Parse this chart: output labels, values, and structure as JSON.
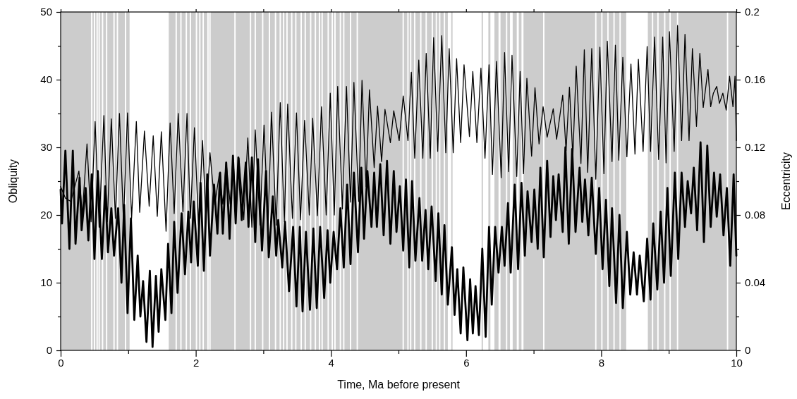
{
  "chart_data": {
    "type": "line",
    "xlabel": "Time, Ma before present",
    "ylabel": "Obliquity",
    "y2label": "Eccentricity",
    "xlim": [
      0,
      10
    ],
    "xticks": [
      0,
      {
        "value": 1,
        "label": null
      },
      2,
      {
        "value": 3,
        "label": null
      },
      4,
      {
        "value": 5,
        "label": null
      },
      6,
      {
        "value": 7,
        "label": null
      },
      8,
      {
        "value": 9,
        "label": null
      },
      10
    ],
    "ylim": [
      0,
      50
    ],
    "yticks": [
      0,
      {
        "value": 5,
        "label": null
      },
      10,
      {
        "value": 15,
        "label": null
      },
      20,
      {
        "value": 25,
        "label": null
      },
      30,
      {
        "value": 35,
        "label": null
      },
      40,
      {
        "value": 45,
        "label": null
      },
      50
    ],
    "y2lim": [
      0,
      0.2
    ],
    "y2ticks": [
      0,
      {
        "value": 0.02,
        "label": null
      },
      0.04,
      {
        "value": 0.06,
        "label": null
      },
      0.08,
      {
        "value": 0.1,
        "label": null
      },
      0.12,
      {
        "value": 0.14,
        "label": null
      },
      0.16,
      {
        "value": 0.18,
        "label": null
      },
      0.2
    ],
    "grid": false,
    "marker": "none",
    "line_style": "solid",
    "bands": [
      {
        "axis": "x",
        "from": 0,
        "to": 0.45,
        "color": "#cccccc"
      },
      {
        "axis": "x",
        "from": 0.47,
        "to": 0.49,
        "color": "#cccccc"
      },
      {
        "axis": "x",
        "from": 0.51,
        "to": 0.53,
        "color": "#cccccc"
      },
      {
        "axis": "x",
        "from": 0.55,
        "to": 0.56,
        "color": "#cccccc"
      },
      {
        "axis": "x",
        "from": 0.58,
        "to": 0.61,
        "color": "#cccccc"
      },
      {
        "axis": "x",
        "from": 0.63,
        "to": 0.67,
        "color": "#cccccc"
      },
      {
        "axis": "x",
        "from": 0.69,
        "to": 0.78,
        "color": "#cccccc"
      },
      {
        "axis": "x",
        "from": 0.8,
        "to": 0.83,
        "color": "#cccccc"
      },
      {
        "axis": "x",
        "from": 0.85,
        "to": 0.95,
        "color": "#cccccc"
      },
      {
        "axis": "x",
        "from": 0.97,
        "to": 1.02,
        "color": "#cccccc"
      },
      {
        "axis": "x",
        "from": 1.6,
        "to": 1.7,
        "color": "#cccccc"
      },
      {
        "axis": "x",
        "from": 1.72,
        "to": 1.77,
        "color": "#cccccc"
      },
      {
        "axis": "x",
        "from": 1.79,
        "to": 1.85,
        "color": "#cccccc"
      },
      {
        "axis": "x",
        "from": 1.87,
        "to": 1.91,
        "color": "#cccccc"
      },
      {
        "axis": "x",
        "from": 1.93,
        "to": 2.0,
        "color": "#cccccc"
      },
      {
        "axis": "x",
        "from": 2.02,
        "to": 2.05,
        "color": "#cccccc"
      },
      {
        "axis": "x",
        "from": 2.07,
        "to": 2.1,
        "color": "#cccccc"
      },
      {
        "axis": "x",
        "from": 2.12,
        "to": 2.17,
        "color": "#cccccc"
      },
      {
        "axis": "x",
        "from": 2.19,
        "to": 2.2,
        "color": "#cccccc"
      },
      {
        "axis": "x",
        "from": 2.22,
        "to": 2.57,
        "color": "#cccccc"
      },
      {
        "axis": "x",
        "from": 2.59,
        "to": 2.8,
        "color": "#cccccc"
      },
      {
        "axis": "x",
        "from": 2.82,
        "to": 2.87,
        "color": "#cccccc"
      },
      {
        "axis": "x",
        "from": 2.89,
        "to": 2.98,
        "color": "#cccccc"
      },
      {
        "axis": "x",
        "from": 3.0,
        "to": 3.08,
        "color": "#cccccc"
      },
      {
        "axis": "x",
        "from": 3.1,
        "to": 3.17,
        "color": "#cccccc"
      },
      {
        "axis": "x",
        "from": 3.19,
        "to": 3.24,
        "color": "#cccccc"
      },
      {
        "axis": "x",
        "from": 3.26,
        "to": 3.29,
        "color": "#cccccc"
      },
      {
        "axis": "x",
        "from": 3.31,
        "to": 3.34,
        "color": "#cccccc"
      },
      {
        "axis": "x",
        "from": 3.36,
        "to": 3.41,
        "color": "#cccccc"
      },
      {
        "axis": "x",
        "from": 3.43,
        "to": 3.47,
        "color": "#cccccc"
      },
      {
        "axis": "x",
        "from": 3.49,
        "to": 3.55,
        "color": "#cccccc"
      },
      {
        "axis": "x",
        "from": 3.57,
        "to": 3.61,
        "color": "#cccccc"
      },
      {
        "axis": "x",
        "from": 3.63,
        "to": 3.69,
        "color": "#cccccc"
      },
      {
        "axis": "x",
        "from": 3.71,
        "to": 3.76,
        "color": "#cccccc"
      },
      {
        "axis": "x",
        "from": 3.78,
        "to": 3.82,
        "color": "#cccccc"
      },
      {
        "axis": "x",
        "from": 3.84,
        "to": 3.86,
        "color": "#cccccc"
      },
      {
        "axis": "x",
        "from": 3.88,
        "to": 3.95,
        "color": "#cccccc"
      },
      {
        "axis": "x",
        "from": 3.97,
        "to": 4.01,
        "color": "#cccccc"
      },
      {
        "axis": "x",
        "from": 4.03,
        "to": 4.05,
        "color": "#cccccc"
      },
      {
        "axis": "x",
        "from": 4.07,
        "to": 4.13,
        "color": "#cccccc"
      },
      {
        "axis": "x",
        "from": 4.15,
        "to": 4.18,
        "color": "#cccccc"
      },
      {
        "axis": "x",
        "from": 4.2,
        "to": 4.28,
        "color": "#cccccc"
      },
      {
        "axis": "x",
        "from": 4.3,
        "to": 4.38,
        "color": "#cccccc"
      },
      {
        "axis": "x",
        "from": 4.4,
        "to": 5.06,
        "color": "#cccccc"
      },
      {
        "axis": "x",
        "from": 5.08,
        "to": 5.13,
        "color": "#cccccc"
      },
      {
        "axis": "x",
        "from": 5.15,
        "to": 5.17,
        "color": "#cccccc"
      },
      {
        "axis": "x",
        "from": 5.19,
        "to": 5.23,
        "color": "#cccccc"
      },
      {
        "axis": "x",
        "from": 5.25,
        "to": 5.32,
        "color": "#cccccc"
      },
      {
        "axis": "x",
        "from": 5.34,
        "to": 5.4,
        "color": "#cccccc"
      },
      {
        "axis": "x",
        "from": 5.42,
        "to": 5.49,
        "color": "#cccccc"
      },
      {
        "axis": "x",
        "from": 5.51,
        "to": 5.55,
        "color": "#cccccc"
      },
      {
        "axis": "x",
        "from": 5.57,
        "to": 5.6,
        "color": "#cccccc"
      },
      {
        "axis": "x",
        "from": 5.62,
        "to": 5.67,
        "color": "#cccccc"
      },
      {
        "axis": "x",
        "from": 5.69,
        "to": 5.73,
        "color": "#cccccc"
      },
      {
        "axis": "x",
        "from": 5.78,
        "to": 5.8,
        "color": "#cccccc"
      },
      {
        "axis": "x",
        "from": 6.23,
        "to": 6.25,
        "color": "#cccccc"
      },
      {
        "axis": "x",
        "from": 6.33,
        "to": 6.36,
        "color": "#cccccc"
      },
      {
        "axis": "x",
        "from": 6.42,
        "to": 6.48,
        "color": "#cccccc"
      },
      {
        "axis": "x",
        "from": 6.51,
        "to": 6.59,
        "color": "#cccccc"
      },
      {
        "axis": "x",
        "from": 6.61,
        "to": 6.65,
        "color": "#cccccc"
      },
      {
        "axis": "x",
        "from": 6.69,
        "to": 6.75,
        "color": "#cccccc"
      },
      {
        "axis": "x",
        "from": 6.78,
        "to": 6.82,
        "color": "#cccccc"
      },
      {
        "axis": "x",
        "from": 6.85,
        "to": 7.14,
        "color": "#cccccc"
      },
      {
        "axis": "x",
        "from": 7.16,
        "to": 7.91,
        "color": "#cccccc"
      },
      {
        "axis": "x",
        "from": 7.93,
        "to": 8.0,
        "color": "#cccccc"
      },
      {
        "axis": "x",
        "from": 8.02,
        "to": 8.09,
        "color": "#cccccc"
      },
      {
        "axis": "x",
        "from": 8.11,
        "to": 8.18,
        "color": "#cccccc"
      },
      {
        "axis": "x",
        "from": 8.2,
        "to": 8.27,
        "color": "#cccccc"
      },
      {
        "axis": "x",
        "from": 8.29,
        "to": 8.37,
        "color": "#cccccc"
      },
      {
        "axis": "x",
        "from": 8.69,
        "to": 8.75,
        "color": "#cccccc"
      },
      {
        "axis": "x",
        "from": 8.77,
        "to": 8.83,
        "color": "#cccccc"
      },
      {
        "axis": "x",
        "from": 8.85,
        "to": 8.93,
        "color": "#cccccc"
      },
      {
        "axis": "x",
        "from": 8.95,
        "to": 9.01,
        "color": "#cccccc"
      },
      {
        "axis": "x",
        "from": 9.03,
        "to": 9.12,
        "color": "#cccccc"
      },
      {
        "axis": "x",
        "from": 9.14,
        "to": 9.86,
        "color": "#cccccc"
      },
      {
        "axis": "x",
        "from": 9.88,
        "to": 10,
        "color": "#cccccc"
      }
    ],
    "series": [
      {
        "color": "#000000",
        "x": [
          0,
          0.07,
          0.15,
          0.27,
          0.32,
          0.39,
          0.45,
          0.51,
          0.57,
          0.64,
          0.69,
          0.75,
          0.81,
          0.87,
          0.93,
          0.99,
          1.05,
          1.12,
          1.17,
          1.24,
          1.31,
          1.37,
          1.43,
          1.49,
          1.56,
          1.62,
          1.68,
          1.74,
          1.81,
          1.87,
          1.92,
          1.98,
          2.04,
          2.1,
          2.15,
          2.21,
          2.28,
          2.35,
          2.4,
          2.45,
          2.51,
          2.55,
          2.6,
          2.64,
          2.71,
          2.77,
          2.83,
          2.88,
          2.95,
          3.01,
          3.07,
          3.12,
          3.19,
          3.25,
          3.31,
          3.36,
          3.43,
          3.49,
          3.55,
          3.61,
          3.68,
          3.73,
          3.8,
          3.86,
          3.93,
          3.99,
          4.05,
          4.1,
          4.17,
          4.23,
          4.29,
          4.34,
          4.41,
          4.46,
          4.52,
          4.57,
          4.64,
          4.69,
          4.75,
          4.8,
          4.88,
          4.93,
          5.01,
          5.07,
          5.14,
          5.19,
          5.24,
          5.3,
          5.36,
          5.41,
          5.47,
          5.52,
          5.58,
          5.64,
          5.7,
          5.75,
          5.81,
          5.86,
          5.92,
          5.97,
          6.05,
          6.1,
          6.16,
          6.22,
          6.28,
          6.34,
          6.39,
          6.45,
          6.52,
          6.57,
          6.63,
          6.68,
          6.75,
          6.8,
          6.85,
          6.9,
          6.97,
          7.02,
          7.08,
          7.14,
          7.2,
          7.29,
          7.34,
          7.43,
          7.48,
          7.53,
          7.58,
          7.63,
          7.7,
          7.75,
          7.8,
          7.86,
          7.92,
          7.98,
          8.04,
          8.09,
          8.16,
          8.21,
          8.26,
          8.32,
          8.38,
          8.44,
          8.5,
          8.55,
          8.62,
          8.68,
          8.73,
          8.79,
          8.85,
          8.91,
          8.96,
          9.01,
          9.08,
          9.13,
          9.19,
          9.24,
          9.3,
          9.35,
          9.41,
          9.46,
          9.51,
          9.58,
          9.62,
          9.66,
          9.71,
          9.75,
          9.8,
          9.85,
          9.9,
          9.95,
          9.98,
          10
        ],
        "values": [
          24.2,
          22.5,
          22,
          26.5,
          20,
          30.5,
          19,
          33.8,
          18.2,
          34.7,
          19,
          34.2,
          19.5,
          35,
          19,
          35.1,
          19.5,
          33.8,
          20.4,
          32.4,
          21.3,
          31.7,
          19.8,
          32.3,
          17.6,
          33.6,
          20.2,
          35,
          20.5,
          35,
          19.5,
          32.9,
          18.5,
          31,
          19.5,
          29.2,
          21.5,
          26.2,
          21.6,
          27.8,
          21.6,
          28.6,
          21,
          28.4,
          19.3,
          31.4,
          18.2,
          32.6,
          18.5,
          33.3,
          18.5,
          35.2,
          18.5,
          36.6,
          19,
          36.4,
          19.5,
          35.1,
          19.3,
          34,
          20,
          34.3,
          19.9,
          36,
          20,
          38,
          20,
          39,
          20.9,
          39,
          21.9,
          39.6,
          22,
          39.9,
          24.2,
          38.5,
          27,
          36.1,
          27.9,
          35.6,
          30.7,
          35.4,
          31,
          37.6,
          31,
          41.1,
          28.4,
          42.9,
          28.4,
          43.9,
          28.4,
          46.2,
          29.4,
          46.5,
          29.2,
          44.6,
          29.2,
          43.1,
          30.7,
          42.2,
          31.6,
          41.2,
          30.7,
          41.7,
          28.4,
          42.2,
          26,
          42.7,
          25.5,
          44,
          26.4,
          43.6,
          25.7,
          41.2,
          26.1,
          40.2,
          28.7,
          38.8,
          30.5,
          36,
          31.5,
          35.7,
          31.2,
          37.7,
          29.5,
          38.9,
          28.6,
          42,
          27.6,
          44.4,
          26.3,
          44.6,
          25.3,
          44.8,
          26.1,
          45.7,
          27.9,
          45.1,
          28.1,
          43.3,
          28.6,
          42.3,
          29,
          43,
          29.4,
          44.9,
          29.4,
          46.3,
          28.2,
          46.3,
          27.7,
          47.1,
          29.4,
          48,
          31,
          46.7,
          31,
          44.6,
          33.1,
          43.9,
          35.9,
          41.5,
          36,
          38,
          39,
          36.5,
          38,
          35.5,
          40.5,
          36,
          40.5,
          31
        ]
      },
      {
        "color": "#000000",
        "axis": "y2",
        "x": [
          0,
          0.02,
          0.07,
          0.13,
          0.18,
          0.22,
          0.28,
          0.31,
          0.37,
          0.41,
          0.46,
          0.5,
          0.55,
          0.61,
          0.66,
          0.7,
          0.75,
          0.79,
          0.85,
          0.9,
          0.94,
          0.99,
          1.04,
          1.09,
          1.14,
          1.18,
          1.22,
          1.27,
          1.32,
          1.36,
          1.41,
          1.45,
          1.49,
          1.55,
          1.59,
          1.64,
          1.68,
          1.73,
          1.79,
          1.84,
          1.89,
          1.93,
          1.97,
          2.03,
          2.07,
          2.12,
          2.17,
          2.21,
          2.27,
          2.32,
          2.36,
          2.4,
          2.45,
          2.5,
          2.55,
          2.59,
          2.63,
          2.68,
          2.74,
          2.78,
          2.83,
          2.88,
          2.92,
          2.98,
          3.04,
          3.08,
          3.14,
          3.19,
          3.22,
          3.28,
          3.32,
          3.38,
          3.44,
          3.49,
          3.54,
          3.58,
          3.63,
          3.69,
          3.74,
          3.79,
          3.84,
          3.9,
          3.95,
          3.99,
          4.04,
          4.09,
          4.14,
          4.19,
          4.24,
          4.29,
          4.34,
          4.4,
          4.45,
          4.49,
          4.54,
          4.6,
          4.64,
          4.68,
          4.73,
          4.78,
          4.83,
          4.88,
          4.93,
          4.97,
          5.02,
          5.07,
          5.11,
          5.16,
          5.2,
          5.25,
          5.31,
          5.35,
          5.4,
          5.44,
          5.49,
          5.55,
          5.59,
          5.64,
          5.68,
          5.73,
          5.79,
          5.83,
          5.87,
          5.92,
          5.96,
          6.02,
          6.06,
          6.1,
          6.14,
          6.19,
          6.24,
          6.29,
          6.34,
          6.38,
          6.43,
          6.48,
          6.53,
          6.57,
          6.62,
          6.66,
          6.72,
          6.77,
          6.82,
          6.87,
          6.91,
          6.97,
          7.01,
          7.06,
          7.1,
          7.15,
          7.2,
          7.25,
          7.29,
          7.33,
          7.37,
          7.43,
          7.47,
          7.52,
          7.57,
          7.62,
          7.68,
          7.72,
          7.76,
          7.81,
          7.86,
          7.92,
          7.97,
          8.02,
          8.07,
          8.12,
          8.16,
          8.22,
          8.27,
          8.32,
          8.38,
          8.43,
          8.48,
          8.53,
          8.57,
          8.63,
          8.68,
          8.73,
          8.77,
          8.83,
          8.88,
          8.93,
          8.98,
          9.03,
          9.09,
          9.14,
          9.19,
          9.24,
          9.28,
          9.33,
          9.37,
          9.42,
          9.47,
          9.52,
          9.57,
          9.62,
          9.67,
          9.71,
          9.76,
          9.81,
          9.86,
          9.91,
          9.96,
          10
        ],
        "values": [
          0.095,
          0.075,
          0.118,
          0.06,
          0.118,
          0.063,
          0.102,
          0.071,
          0.096,
          0.065,
          0.104,
          0.054,
          0.106,
          0.054,
          0.097,
          0.058,
          0.084,
          0.056,
          0.084,
          0.04,
          0.086,
          0.022,
          0.078,
          0.018,
          0.056,
          0.02,
          0.041,
          0.005,
          0.047,
          0.002,
          0.044,
          0.011,
          0.048,
          0.018,
          0.063,
          0.022,
          0.076,
          0.034,
          0.081,
          0.045,
          0.082,
          0.052,
          0.088,
          0.05,
          0.099,
          0.047,
          0.104,
          0.056,
          0.098,
          0.069,
          0.105,
          0.069,
          0.111,
          0.066,
          0.115,
          0.075,
          0.114,
          0.077,
          0.111,
          0.073,
          0.114,
          0.064,
          0.113,
          0.059,
          0.106,
          0.055,
          0.091,
          0.056,
          0.077,
          0.049,
          0.076,
          0.035,
          0.073,
          0.026,
          0.073,
          0.023,
          0.07,
          0.024,
          0.072,
          0.025,
          0.073,
          0.031,
          0.071,
          0.04,
          0.07,
          0.048,
          0.084,
          0.049,
          0.098,
          0.051,
          0.105,
          0.058,
          0.108,
          0.066,
          0.106,
          0.073,
          0.105,
          0.073,
          0.11,
          0.068,
          0.112,
          0.063,
          0.106,
          0.07,
          0.097,
          0.059,
          0.101,
          0.049,
          0.1,
          0.053,
          0.09,
          0.053,
          0.083,
          0.048,
          0.085,
          0.041,
          0.081,
          0.033,
          0.074,
          0.027,
          0.061,
          0.021,
          0.048,
          0.01,
          0.049,
          0.006,
          0.042,
          0.01,
          0.038,
          0.009,
          0.06,
          0.008,
          0.073,
          0.027,
          0.073,
          0.046,
          0.073,
          0.05,
          0.087,
          0.046,
          0.098,
          0.048,
          0.099,
          0.056,
          0.094,
          0.064,
          0.095,
          0.06,
          0.108,
          0.055,
          0.112,
          0.067,
          0.103,
          0.077,
          0.104,
          0.07,
          0.12,
          0.063,
          0.119,
          0.07,
          0.108,
          0.076,
          0.101,
          0.068,
          0.102,
          0.057,
          0.096,
          0.048,
          0.089,
          0.038,
          0.084,
          0.028,
          0.08,
          0.025,
          0.07,
          0.033,
          0.058,
          0.033,
          0.056,
          0.029,
          0.066,
          0.03,
          0.075,
          0.036,
          0.082,
          0.04,
          0.096,
          0.044,
          0.105,
          0.054,
          0.105,
          0.073,
          0.1,
          0.081,
          0.108,
          0.071,
          0.123,
          0.064,
          0.121,
          0.073,
          0.105,
          0.079,
          0.104,
          0.068,
          0.096,
          0.05,
          0.104,
          0.056
        ]
      }
    ]
  }
}
